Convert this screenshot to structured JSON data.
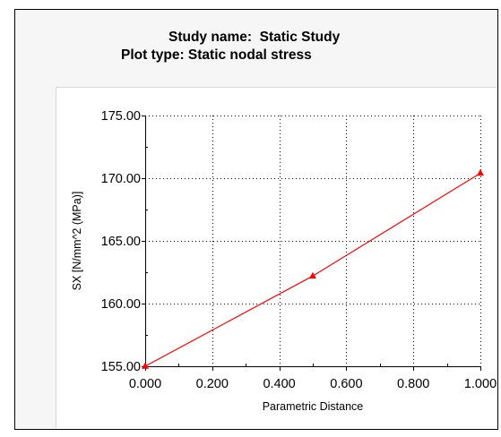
{
  "title": {
    "study_line": "Study name:  Static Study",
    "plot_line": "Plot type: Static nodal stress"
  },
  "colors": {
    "series": "#ff0000",
    "background": "#f6f6f6",
    "plot_background": "#ffffff",
    "grid": "#000000"
  },
  "chart_data": {
    "type": "line",
    "xlabel": "Parametric Distance",
    "ylabel": "SX [N/mm^2 (MPa)]",
    "xlim": [
      0,
      1
    ],
    "ylim": [
      155,
      175
    ],
    "x_ticks": [
      0,
      0.2,
      0.4,
      0.6,
      0.8,
      1.0
    ],
    "y_ticks": [
      155,
      160,
      165,
      170,
      175
    ],
    "x_tick_labels": [
      "0.000",
      "0.200",
      "0.400",
      "0.600",
      "0.800",
      "1.000"
    ],
    "y_tick_labels": [
      "155.00",
      "160.00",
      "165.00",
      "170.00",
      "175.00"
    ],
    "grid": "dotted",
    "series": [
      {
        "x": [
          0.0,
          0.5,
          1.0
        ],
        "y": [
          155.0,
          162.2,
          170.4
        ],
        "marker": "triangle"
      }
    ]
  }
}
